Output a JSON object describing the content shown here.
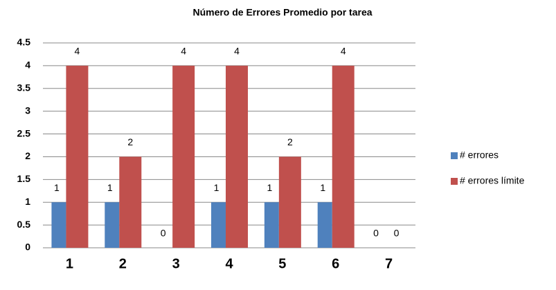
{
  "chart_data": {
    "type": "bar",
    "title": "Número de Errores Promedio por tarea",
    "categories": [
      "1",
      "2",
      "3",
      "4",
      "5",
      "6",
      "7"
    ],
    "series": [
      {
        "name": "# errores",
        "color": "#4f81bd",
        "values": [
          1,
          1,
          0,
          1,
          1,
          1,
          0
        ]
      },
      {
        "name": "# errores límite",
        "color": "#c0504d",
        "values": [
          4,
          2,
          4,
          4,
          2,
          4,
          0
        ]
      }
    ],
    "ylim": [
      0,
      4.5
    ],
    "yticks": [
      0,
      0.5,
      1,
      1.5,
      2,
      2.5,
      3,
      3.5,
      4,
      4.5
    ],
    "grid": true,
    "legend": "right"
  }
}
